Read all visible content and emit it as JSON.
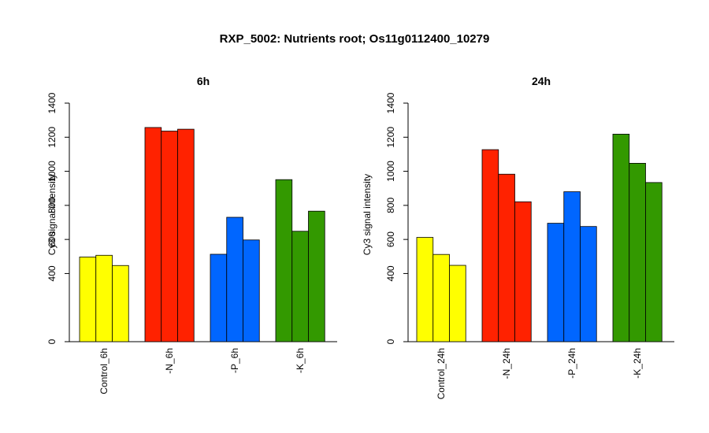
{
  "title": "RXP_5002: Nutrients root; Os11g0112400_10279",
  "chart_data": [
    {
      "type": "bar",
      "title": "6h",
      "ylabel": "Cy3 signal intensity",
      "ylim": [
        0,
        1400
      ],
      "yticks": [
        0,
        400,
        600,
        800,
        1000,
        1200,
        1400
      ],
      "groups": [
        {
          "label": "Control_6h",
          "color": "#ffff00",
          "values": [
            497,
            507,
            447
          ]
        },
        {
          "label": "-N_6h",
          "color": "#ff2200",
          "values": [
            1257,
            1236,
            1247
          ]
        },
        {
          "label": "-P_6h",
          "color": "#0066ff",
          "values": [
            513,
            730,
            597
          ]
        },
        {
          "label": "-K_6h",
          "color": "#339900",
          "values": [
            951,
            648,
            766
          ]
        }
      ]
    },
    {
      "type": "bar",
      "title": "24h",
      "ylabel": "Cy3 signal intensity",
      "ylim": [
        0,
        1400
      ],
      "yticks": [
        0,
        400,
        600,
        800,
        1000,
        1200,
        1400
      ],
      "groups": [
        {
          "label": "Control_24h",
          "color": "#ffff00",
          "values": [
            612,
            512,
            448
          ]
        },
        {
          "label": "-N_24h",
          "color": "#ff2200",
          "values": [
            1127,
            983,
            821
          ]
        },
        {
          "label": "-P_24h",
          "color": "#0066ff",
          "values": [
            695,
            880,
            676
          ]
        },
        {
          "label": "-K_24h",
          "color": "#339900",
          "values": [
            1218,
            1047,
            934
          ]
        }
      ]
    }
  ]
}
